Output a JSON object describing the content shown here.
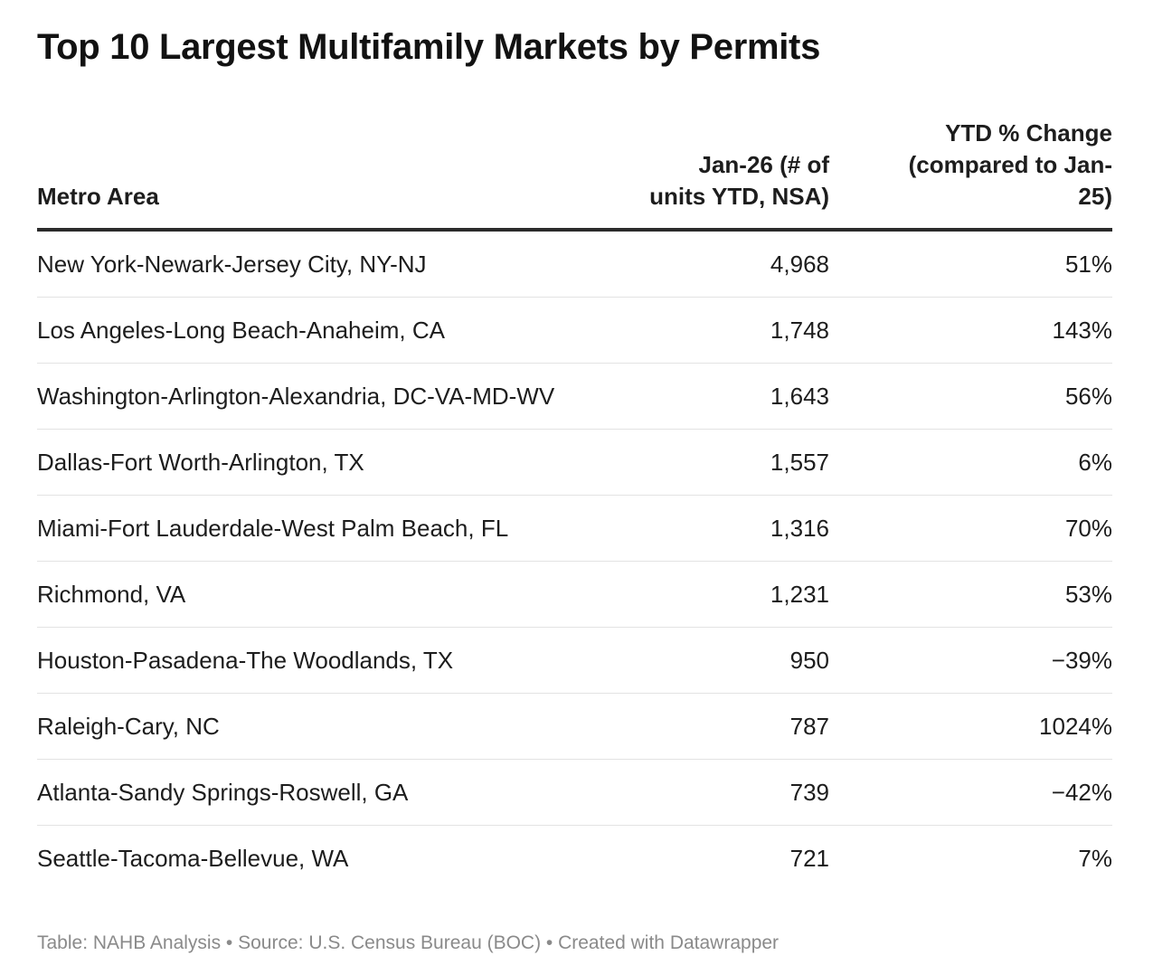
{
  "title": "Top 10 Largest Multifamily Markets by Permits",
  "footer": "Table: NAHB Analysis • Source: U.S. Census Bureau (BOC) • Created with Datawrapper",
  "chart_data": {
    "type": "table",
    "title": "Top 10 Largest Multifamily Markets by Permits",
    "columns": [
      "Metro Area",
      "Jan-26 (# of units YTD, NSA)",
      "YTD % Change (compared to Jan-25)"
    ],
    "column_header_lines": [
      [
        "Metro Area"
      ],
      [
        "Jan-26 (# of",
        "units YTD, NSA)"
      ],
      [
        "YTD % Change",
        "(compared to Jan-",
        "25)"
      ]
    ],
    "rows": [
      [
        "New York-Newark-Jersey City, NY-NJ",
        "4,968",
        "51%"
      ],
      [
        "Los Angeles-Long Beach-Anaheim, CA",
        "1,748",
        "143%"
      ],
      [
        "Washington-Arlington-Alexandria, DC-VA-MD-WV",
        "1,643",
        "56%"
      ],
      [
        "Dallas-Fort Worth-Arlington, TX",
        "1,557",
        "6%"
      ],
      [
        "Miami-Fort Lauderdale-West Palm Beach, FL",
        "1,316",
        "70%"
      ],
      [
        "Richmond, VA",
        "1,231",
        "53%"
      ],
      [
        "Houston-Pasadena-The Woodlands, TX",
        "950",
        "−39%"
      ],
      [
        "Raleigh-Cary, NC",
        "787",
        "1024%"
      ],
      [
        "Atlanta-Sandy Springs-Roswell, GA",
        "739",
        "−42%"
      ],
      [
        "Seattle-Tacoma-Bellevue, WA",
        "721",
        "7%"
      ]
    ]
  }
}
